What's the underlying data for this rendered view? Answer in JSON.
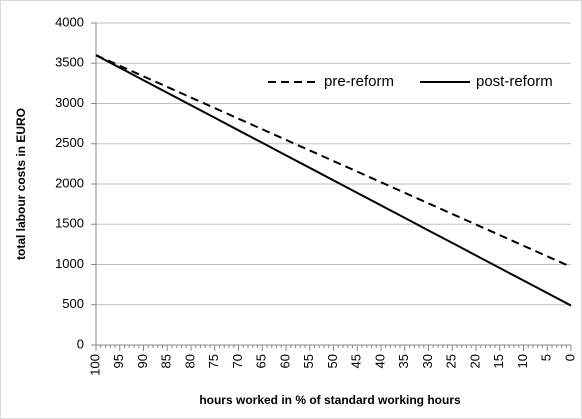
{
  "chart_data": {
    "type": "line",
    "categories": [
      "100",
      "95",
      "90",
      "85",
      "80",
      "75",
      "70",
      "65",
      "60",
      "55",
      "50",
      "45",
      "40",
      "35",
      "30",
      "25",
      "20",
      "15",
      "10",
      "5",
      "0"
    ],
    "series": [
      {
        "name": "pre-reform",
        "color": "#000000",
        "dash": true,
        "values": [
          3600,
          3469,
          3337,
          3206,
          3074,
          2943,
          2811,
          2680,
          2548,
          2417,
          2285,
          2154,
          2022,
          1891,
          1759,
          1628,
          1496,
          1365,
          1233,
          1102,
          970
        ]
      },
      {
        "name": "post-reform",
        "color": "#000000",
        "dash": false,
        "values": [
          3600,
          3445,
          3289,
          3134,
          2978,
          2823,
          2667,
          2512,
          2356,
          2201,
          2045,
          1890,
          1734,
          1579,
          1423,
          1268,
          1112,
          957,
          801,
          646,
          490
        ]
      }
    ],
    "x_label": "hours worked in % of standard working hours",
    "y_label": "total labour costs in EURO",
    "ylim": [
      0,
      4000
    ],
    "yticks": [
      0,
      500,
      1000,
      1500,
      2000,
      2500,
      3000,
      3500,
      4000
    ],
    "grid": true,
    "legend": "top"
  }
}
